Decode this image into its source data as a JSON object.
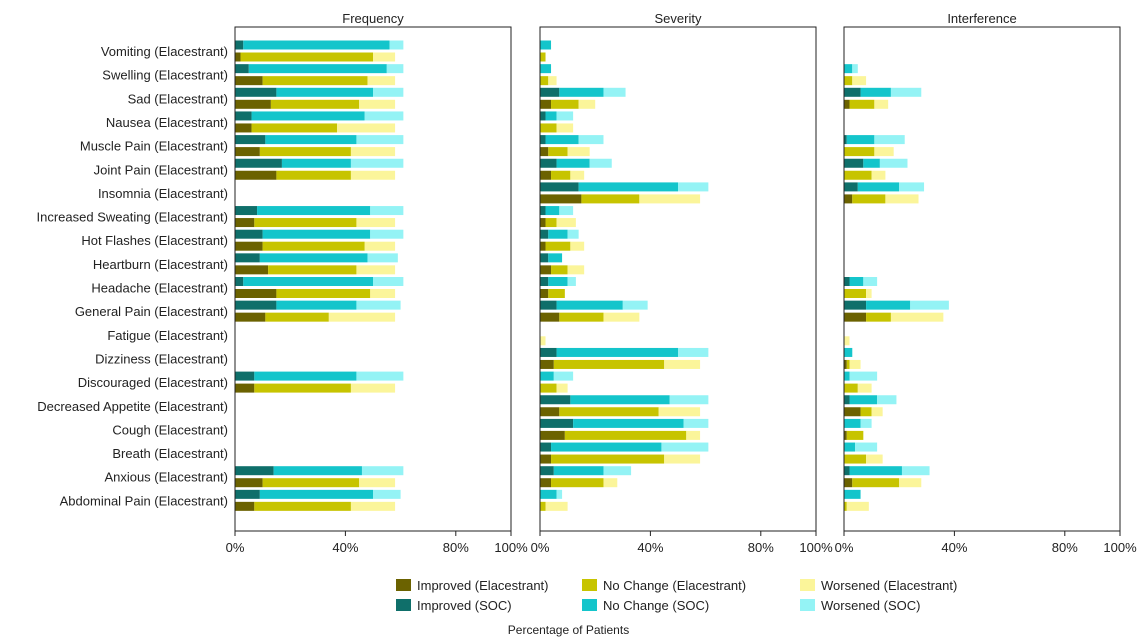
{
  "chart_data": {
    "type": "bar",
    "orientation": "horizontal",
    "stacked": true,
    "panels": [
      "Frequency",
      "Severity",
      "Interference"
    ],
    "xlabel": "Percentage of Patients",
    "xlim": [
      0,
      100
    ],
    "xticks": [
      "0%",
      "40%",
      "80%",
      "100%"
    ],
    "categories": [
      "Vomiting (Elacestrant)",
      "Swelling (Elacestrant)",
      "Sad (Elacestrant)",
      "Nausea (Elacestrant)",
      "Muscle Pain (Elacestrant)",
      "Joint Pain (Elacestrant)",
      "Insomnia (Elacestrant)",
      "Increased Sweating (Elacestrant)",
      "Hot Flashes (Elacestrant)",
      "Heartburn (Elacestrant)",
      "Headache (Elacestrant)",
      "General Pain (Elacestrant)",
      "Fatigue (Elacestrant)",
      "Dizziness (Elacestrant)",
      "Discouraged (Elacestrant)",
      "Decreased Appetite (Elacestrant)",
      "Cough (Elacestrant)",
      "Breath (Elacestrant)",
      "Anxious (Elacestrant)",
      "Abdominal Pain (Elacestrant)"
    ],
    "legend": [
      {
        "label": "Improved (Elacestrant)",
        "color": "#6b6200"
      },
      {
        "label": "No Change (Elacestrant)",
        "color": "#c7c400"
      },
      {
        "label": "Worsened (Elacestrant)",
        "color": "#fbf59a"
      },
      {
        "label": "Improved (SOC)",
        "color": "#0f6f6a"
      },
      {
        "label": "No Change (SOC)",
        "color": "#14c5cb"
      },
      {
        "label": "Worsened (SOC)",
        "color": "#94f3f5"
      }
    ],
    "series_order": [
      "Improved",
      "No Change",
      "Worsened"
    ],
    "data": {
      "Frequency": [
        {
          "soc": [
            3,
            53,
            5
          ],
          "ela": [
            2,
            48,
            8
          ]
        },
        {
          "soc": [
            5,
            50,
            6
          ],
          "ela": [
            10,
            38,
            10
          ]
        },
        {
          "soc": [
            15,
            35,
            11
          ],
          "ela": [
            13,
            32,
            13
          ]
        },
        {
          "soc": [
            6,
            41,
            14
          ],
          "ela": [
            6,
            31,
            21
          ]
        },
        {
          "soc": [
            11,
            33,
            17
          ],
          "ela": [
            9,
            33,
            16
          ]
        },
        {
          "soc": [
            17,
            25,
            19
          ],
          "ela": [
            15,
            27,
            16
          ]
        },
        {
          "soc": null,
          "ela": null
        },
        {
          "soc": [
            8,
            41,
            12
          ],
          "ela": [
            7,
            37,
            14
          ]
        },
        {
          "soc": [
            10,
            39,
            12
          ],
          "ela": [
            10,
            37,
            11
          ]
        },
        {
          "soc": [
            9,
            39,
            11
          ],
          "ela": [
            12,
            32,
            14
          ]
        },
        {
          "soc": [
            3,
            47,
            11
          ],
          "ela": [
            15,
            34,
            9
          ]
        },
        {
          "soc": [
            15,
            29,
            16
          ],
          "ela": [
            11,
            23,
            24
          ]
        },
        {
          "soc": null,
          "ela": null
        },
        {
          "soc": null,
          "ela": null
        },
        {
          "soc": [
            7,
            37,
            17
          ],
          "ela": [
            7,
            35,
            16
          ]
        },
        {
          "soc": null,
          "ela": null
        },
        {
          "soc": null,
          "ela": null
        },
        {
          "soc": null,
          "ela": null
        },
        {
          "soc": [
            14,
            32,
            15
          ],
          "ela": [
            10,
            35,
            13
          ]
        },
        {
          "soc": [
            9,
            41,
            10
          ],
          "ela": [
            7,
            35,
            16
          ]
        }
      ],
      "Severity": [
        {
          "soc": [
            0,
            4,
            0
          ],
          "ela": [
            0,
            2,
            0
          ]
        },
        {
          "soc": [
            0,
            4,
            0
          ],
          "ela": [
            0,
            3,
            3
          ]
        },
        {
          "soc": [
            7,
            16,
            8
          ],
          "ela": [
            4,
            10,
            6
          ]
        },
        {
          "soc": [
            2,
            4,
            6
          ],
          "ela": [
            0,
            6,
            6
          ]
        },
        {
          "soc": [
            2,
            12,
            9
          ],
          "ela": [
            3,
            7,
            8
          ]
        },
        {
          "soc": [
            6,
            12,
            8
          ],
          "ela": [
            4,
            7,
            5
          ]
        },
        {
          "soc": [
            14,
            36,
            11
          ],
          "ela": [
            15,
            21,
            22
          ]
        },
        {
          "soc": [
            2,
            5,
            5
          ],
          "ela": [
            2,
            4,
            7
          ]
        },
        {
          "soc": [
            3,
            7,
            4
          ],
          "ela": [
            2,
            9,
            5
          ]
        },
        {
          "soc": [
            3,
            5,
            0
          ],
          "ela": [
            4,
            6,
            6
          ]
        },
        {
          "soc": [
            3,
            7,
            3
          ],
          "ela": [
            3,
            6,
            0
          ]
        },
        {
          "soc": [
            6,
            24,
            9
          ],
          "ela": [
            7,
            16,
            13
          ]
        },
        {
          "soc": null,
          "ela": [
            0,
            0,
            2
          ]
        },
        {
          "soc": [
            6,
            44,
            11
          ],
          "ela": [
            5,
            40,
            13
          ]
        },
        {
          "soc": [
            0,
            5,
            7
          ],
          "ela": [
            0,
            6,
            4
          ]
        },
        {
          "soc": [
            11,
            36,
            14
          ],
          "ela": [
            7,
            36,
            15
          ]
        },
        {
          "soc": [
            12,
            40,
            9
          ],
          "ela": [
            9,
            44,
            5
          ]
        },
        {
          "soc": [
            4,
            40,
            17
          ],
          "ela": [
            4,
            41,
            13
          ]
        },
        {
          "soc": [
            5,
            18,
            10
          ],
          "ela": [
            4,
            19,
            5
          ]
        },
        {
          "soc": [
            0,
            6,
            2
          ],
          "ela": [
            0,
            2,
            8
          ]
        }
      ],
      "Interference": [
        {
          "soc": null,
          "ela": null
        },
        {
          "soc": [
            0,
            3,
            2
          ],
          "ela": [
            0,
            3,
            5
          ]
        },
        {
          "soc": [
            6,
            11,
            11
          ],
          "ela": [
            2,
            9,
            5
          ]
        },
        {
          "soc": null,
          "ela": null
        },
        {
          "soc": [
            1,
            10,
            11
          ],
          "ela": [
            0,
            11,
            7
          ]
        },
        {
          "soc": [
            7,
            6,
            10
          ],
          "ela": [
            0,
            10,
            5
          ]
        },
        {
          "soc": [
            5,
            15,
            9
          ],
          "ela": [
            3,
            12,
            12
          ]
        },
        {
          "soc": null,
          "ela": null
        },
        {
          "soc": null,
          "ela": null
        },
        {
          "soc": null,
          "ela": null
        },
        {
          "soc": [
            2,
            5,
            5
          ],
          "ela": [
            0,
            8,
            2
          ]
        },
        {
          "soc": [
            8,
            16,
            14
          ],
          "ela": [
            8,
            9,
            19
          ]
        },
        {
          "soc": null,
          "ela": [
            0,
            0,
            2
          ]
        },
        {
          "soc": [
            0,
            3,
            0
          ],
          "ela": [
            1,
            1,
            4
          ]
        },
        {
          "soc": [
            0,
            2,
            10
          ],
          "ela": [
            0,
            5,
            5
          ]
        },
        {
          "soc": [
            2,
            10,
            7
          ],
          "ela": [
            6,
            4,
            4
          ]
        },
        {
          "soc": [
            0,
            6,
            4
          ],
          "ela": [
            1,
            6,
            0
          ]
        },
        {
          "soc": [
            0,
            4,
            8
          ],
          "ela": [
            0,
            8,
            6
          ]
        },
        {
          "soc": [
            2,
            19,
            10
          ],
          "ela": [
            3,
            17,
            8
          ]
        },
        {
          "soc": [
            0,
            6,
            0
          ],
          "ela": [
            0,
            1,
            8
          ]
        }
      ]
    }
  }
}
